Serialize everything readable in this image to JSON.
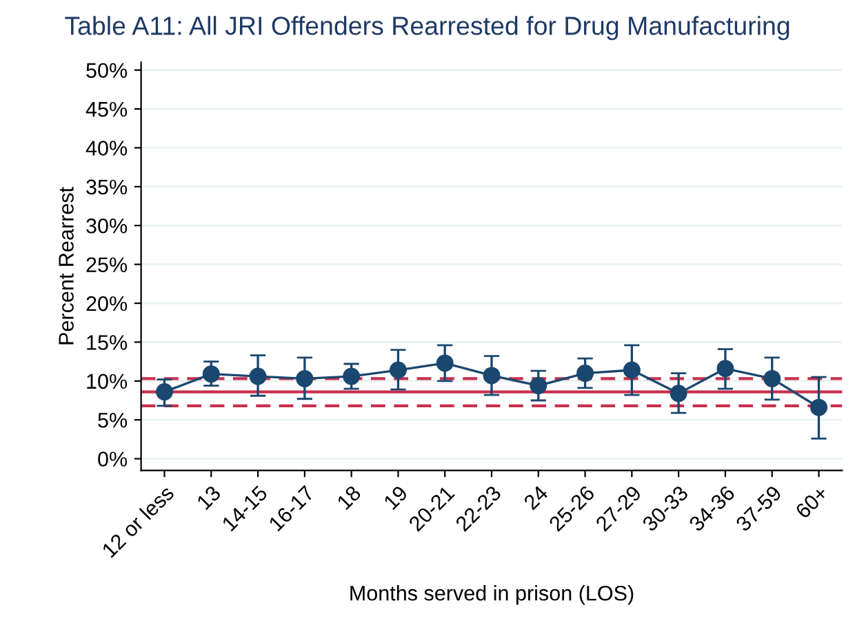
{
  "chart_data": {
    "type": "line",
    "title": "Table A11: All JRI Offenders Rearrested for Drug Manufacturing",
    "xlabel": "Months served in prison (LOS)",
    "ylabel": "Percent Rearrest",
    "categories": [
      "12 or less",
      "13",
      "14-15",
      "16-17",
      "18",
      "19",
      "20-21",
      "22-23",
      "24",
      "25-26",
      "27-29",
      "30-33",
      "34-36",
      "37-59",
      "60+"
    ],
    "series": [
      {
        "color": "#1a476f",
        "values": [
          8.6,
          10.9,
          10.6,
          10.3,
          10.6,
          11.4,
          12.3,
          10.7,
          9.4,
          11.0,
          11.4,
          8.4,
          11.6,
          10.3,
          6.6
        ],
        "errors": [
          [
            6.8,
            10.2
          ],
          [
            9.4,
            12.5
          ],
          [
            8.1,
            13.3
          ],
          [
            7.7,
            13.0
          ],
          [
            9.0,
            12.2
          ],
          [
            8.9,
            14.0
          ],
          [
            10.0,
            14.6
          ],
          [
            8.2,
            13.2
          ],
          [
            7.5,
            11.3
          ],
          [
            9.1,
            12.9
          ],
          [
            8.2,
            14.6
          ],
          [
            5.9,
            11.0
          ],
          [
            9.0,
            14.1
          ],
          [
            7.6,
            13.0
          ],
          [
            2.6,
            10.5
          ]
        ]
      }
    ],
    "marker": "circle",
    "grid": "y",
    "legend": false,
    "ylim": [
      -1.5,
      51
    ],
    "yticks": [
      {
        "value": 0,
        "label": "0%"
      },
      {
        "value": 5,
        "label": "5%"
      },
      {
        "value": 10,
        "label": "10%"
      },
      {
        "value": 15,
        "label": "15%"
      },
      {
        "value": 20,
        "label": "20%"
      },
      {
        "value": 25,
        "label": "25%"
      },
      {
        "value": 30,
        "label": "30%"
      },
      {
        "value": 35,
        "label": "35%"
      },
      {
        "value": 40,
        "label": "40%"
      },
      {
        "value": 45,
        "label": "45%"
      },
      {
        "value": 50,
        "label": "50%"
      }
    ],
    "ref_lines": [
      {
        "axis": "y",
        "value": 8.6,
        "color": "#c9304f",
        "line_style": "solid"
      },
      {
        "axis": "y",
        "value": 10.3,
        "color": "#c9304f",
        "line_style": "dashed"
      },
      {
        "axis": "y",
        "value": 6.8,
        "color": "#c9304f",
        "line_style": "dashed"
      }
    ]
  }
}
